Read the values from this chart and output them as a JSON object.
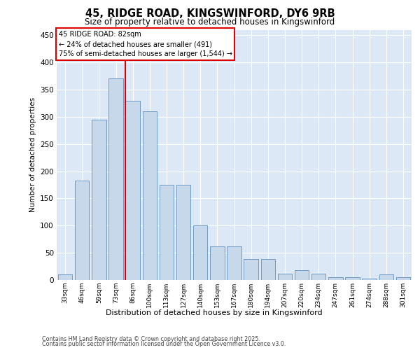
{
  "title1": "45, RIDGE ROAD, KINGSWINFORD, DY6 9RB",
  "title2": "Size of property relative to detached houses in Kingswinford",
  "xlabel": "Distribution of detached houses by size in Kingswinford",
  "ylabel": "Number of detached properties",
  "categories": [
    "33sqm",
    "46sqm",
    "59sqm",
    "73sqm",
    "86sqm",
    "100sqm",
    "113sqm",
    "127sqm",
    "140sqm",
    "153sqm",
    "167sqm",
    "180sqm",
    "194sqm",
    "207sqm",
    "220sqm",
    "234sqm",
    "247sqm",
    "261sqm",
    "274sqm",
    "288sqm",
    "301sqm"
  ],
  "values": [
    10,
    183,
    295,
    370,
    330,
    310,
    175,
    175,
    100,
    62,
    62,
    38,
    38,
    12,
    18,
    12,
    5,
    5,
    2,
    10,
    5
  ],
  "bar_color": "#c8d8eb",
  "bar_edge_color": "#6090bb",
  "vline_color": "#dd0000",
  "vline_position": 3.575,
  "annotation_text": "45 RIDGE ROAD: 82sqm\n← 24% of detached houses are smaller (491)\n75% of semi-detached houses are larger (1,544) →",
  "ylim": [
    0,
    460
  ],
  "yticks": [
    0,
    50,
    100,
    150,
    200,
    250,
    300,
    350,
    400,
    450
  ],
  "grid_color": "#ffffff",
  "plot_bg_color": "#dce8f5",
  "footer1": "Contains HM Land Registry data © Crown copyright and database right 2025.",
  "footer2": "Contains public sector information licensed under the Open Government Licence v3.0."
}
